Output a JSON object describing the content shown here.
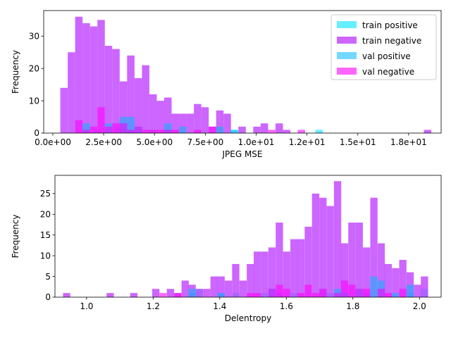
{
  "chart_data": [
    {
      "type": "bar",
      "subtype": "overlaid histogram",
      "xlabel": "JPEG MSE",
      "ylabel": "Frequency",
      "xlim": [
        -0.45,
        19.1
      ],
      "ylim": [
        0,
        37.9
      ],
      "xticks": [
        0,
        2.5,
        5,
        7.5,
        10,
        12.5,
        15,
        17.5
      ],
      "xtick_labels": [
        "0.0e+00",
        "2.5e+00",
        "5.0e+00",
        "7.5e+00",
        "1.0e+01",
        "1.2e+01",
        "1.5e+01",
        "1.8e+01"
      ],
      "yticks": [
        0,
        10,
        20,
        30
      ],
      "ytick_labels": [
        "0",
        "10",
        "20",
        "30"
      ],
      "bin_width": 0.365,
      "legend": {
        "location": "top-right",
        "entries": [
          "train positive",
          "train negative",
          "val positive",
          "val negative"
        ]
      },
      "series": [
        {
          "name": "train positive",
          "color": "#00e5ff",
          "opacity": 0.6,
          "bins": [
            [
              2.2,
              1
            ],
            [
              3.3,
              2
            ],
            [
              3.8,
              1
            ],
            [
              4.9,
              1
            ],
            [
              5.6,
              1
            ],
            [
              8.9,
              1
            ],
            [
              13.1,
              1
            ]
          ]
        },
        {
          "name": "train negative",
          "color": "#bf40ff",
          "opacity": 0.8,
          "bins": [
            [
              0.55,
              14
            ],
            [
              0.915,
              25
            ],
            [
              1.28,
              36
            ],
            [
              1.645,
              34
            ],
            [
              2.01,
              33
            ],
            [
              2.375,
              35
            ],
            [
              2.74,
              27
            ],
            [
              3.105,
              26
            ],
            [
              3.47,
              16
            ],
            [
              3.835,
              24
            ],
            [
              4.2,
              17
            ],
            [
              4.565,
              21
            ],
            [
              4.93,
              12
            ],
            [
              5.295,
              10
            ],
            [
              5.66,
              11
            ],
            [
              6.025,
              6
            ],
            [
              6.39,
              6
            ],
            [
              6.755,
              6
            ],
            [
              7.12,
              9
            ],
            [
              7.485,
              8
            ],
            [
              7.85,
              2
            ],
            [
              8.215,
              7
            ],
            [
              8.58,
              6
            ],
            [
              9.31,
              2
            ],
            [
              10.04,
              2
            ],
            [
              10.405,
              3
            ],
            [
              11.135,
              3
            ],
            [
              11.5,
              1
            ],
            [
              18.435,
              1
            ]
          ]
        },
        {
          "name": "val positive",
          "color": "#00b8ff",
          "opacity": 0.55,
          "bins": [
            [
              1.645,
              3
            ],
            [
              2.74,
              3
            ],
            [
              3.47,
              5
            ],
            [
              3.835,
              5
            ],
            [
              4.2,
              2
            ],
            [
              5.66,
              3
            ],
            [
              6.39,
              2
            ],
            [
              8.215,
              2
            ],
            [
              8.945,
              1
            ]
          ]
        },
        {
          "name": "val negative",
          "color": "#ff00ff",
          "opacity": 0.6,
          "bins": [
            [
              1.28,
              4
            ],
            [
              1.645,
              1
            ],
            [
              2.01,
              2
            ],
            [
              2.375,
              8
            ],
            [
              2.74,
              2
            ],
            [
              3.105,
              3
            ],
            [
              3.47,
              3
            ],
            [
              3.835,
              1
            ],
            [
              4.2,
              2
            ],
            [
              4.565,
              1
            ],
            [
              4.93,
              1
            ],
            [
              5.295,
              1
            ],
            [
              5.66,
              1
            ],
            [
              6.025,
              1
            ],
            [
              7.12,
              1
            ],
            [
              7.85,
              2
            ],
            [
              10.77,
              1
            ],
            [
              12.23,
              1
            ]
          ]
        }
      ]
    },
    {
      "type": "bar",
      "subtype": "overlaid histogram",
      "xlabel": "Delentropy",
      "ylabel": "Frequency",
      "xlim": [
        0.905,
        2.065
      ],
      "ylim": [
        0,
        29.4
      ],
      "xticks": [
        1.0,
        1.2,
        1.4,
        1.6,
        1.8,
        2.0
      ],
      "xtick_labels": [
        "1.0",
        "1.2",
        "1.4",
        "1.6",
        "1.8",
        "2.0"
      ],
      "yticks": [
        0,
        5,
        10,
        15,
        20,
        25
      ],
      "ytick_labels": [
        "0",
        "5",
        "10",
        "15",
        "20",
        "25"
      ],
      "bin_width": 0.0218,
      "series": [
        {
          "name": "train positive",
          "color": "#00e5ff",
          "opacity": 0.6,
          "bins": [
            [
              1.317,
              1
            ],
            [
              1.339,
              2
            ],
            [
              1.404,
              1
            ],
            [
              1.448,
              1
            ],
            [
              1.535,
              1
            ],
            [
              1.579,
              1
            ],
            [
              1.623,
              1
            ],
            [
              1.71,
              2
            ],
            [
              1.732,
              1
            ],
            [
              1.776,
              1
            ],
            [
              1.841,
              1
            ],
            [
              1.972,
              1
            ],
            [
              2.015,
              2
            ]
          ]
        },
        {
          "name": "train negative",
          "color": "#bf40ff",
          "opacity": 0.8,
          "bins": [
            [
              0.94,
              1
            ],
            [
              1.071,
              1
            ],
            [
              1.142,
              1
            ],
            [
              1.208,
              2
            ],
            [
              1.252,
              2
            ],
            [
              1.274,
              1
            ],
            [
              1.296,
              4
            ],
            [
              1.317,
              3
            ],
            [
              1.339,
              2
            ],
            [
              1.361,
              2
            ],
            [
              1.383,
              5
            ],
            [
              1.404,
              5
            ],
            [
              1.426,
              4
            ],
            [
              1.448,
              8
            ],
            [
              1.47,
              4
            ],
            [
              1.492,
              8
            ],
            [
              1.513,
              11
            ],
            [
              1.535,
              11
            ],
            [
              1.557,
              12
            ],
            [
              1.579,
              18
            ],
            [
              1.601,
              11
            ],
            [
              1.623,
              14
            ],
            [
              1.644,
              14
            ],
            [
              1.666,
              17
            ],
            [
              1.688,
              25
            ],
            [
              1.71,
              24
            ],
            [
              1.732,
              22
            ],
            [
              1.754,
              28
            ],
            [
              1.775,
              13
            ],
            [
              1.797,
              18
            ],
            [
              1.819,
              18
            ],
            [
              1.841,
              12
            ],
            [
              1.863,
              24
            ],
            [
              1.885,
              13
            ],
            [
              1.906,
              8
            ],
            [
              1.928,
              7
            ],
            [
              1.95,
              9
            ],
            [
              1.972,
              6
            ],
            [
              1.994,
              3
            ],
            [
              2.015,
              5
            ]
          ]
        },
        {
          "name": "val positive",
          "color": "#00b8ff",
          "opacity": 0.55,
          "bins": [
            [
              1.317,
              2
            ],
            [
              1.404,
              1
            ],
            [
              1.557,
              2
            ],
            [
              1.754,
              2
            ],
            [
              1.775,
              1
            ],
            [
              1.819,
              2
            ],
            [
              1.863,
              5
            ],
            [
              1.885,
              4
            ],
            [
              1.928,
              1
            ],
            [
              1.972,
              3
            ]
          ]
        },
        {
          "name": "val negative",
          "color": "#ff00ff",
          "opacity": 0.6,
          "bins": [
            [
              1.23,
              1
            ],
            [
              1.274,
              1
            ],
            [
              1.492,
              1
            ],
            [
              1.513,
              1
            ],
            [
              1.557,
              2
            ],
            [
              1.579,
              3
            ],
            [
              1.601,
              2
            ],
            [
              1.644,
              1
            ],
            [
              1.666,
              3
            ],
            [
              1.688,
              1
            ],
            [
              1.71,
              2
            ],
            [
              1.754,
              1
            ],
            [
              1.775,
              4
            ],
            [
              1.797,
              3
            ],
            [
              1.819,
              2
            ],
            [
              1.841,
              2
            ],
            [
              1.885,
              2
            ],
            [
              1.906,
              1
            ],
            [
              1.95,
              2
            ]
          ]
        }
      ]
    }
  ]
}
